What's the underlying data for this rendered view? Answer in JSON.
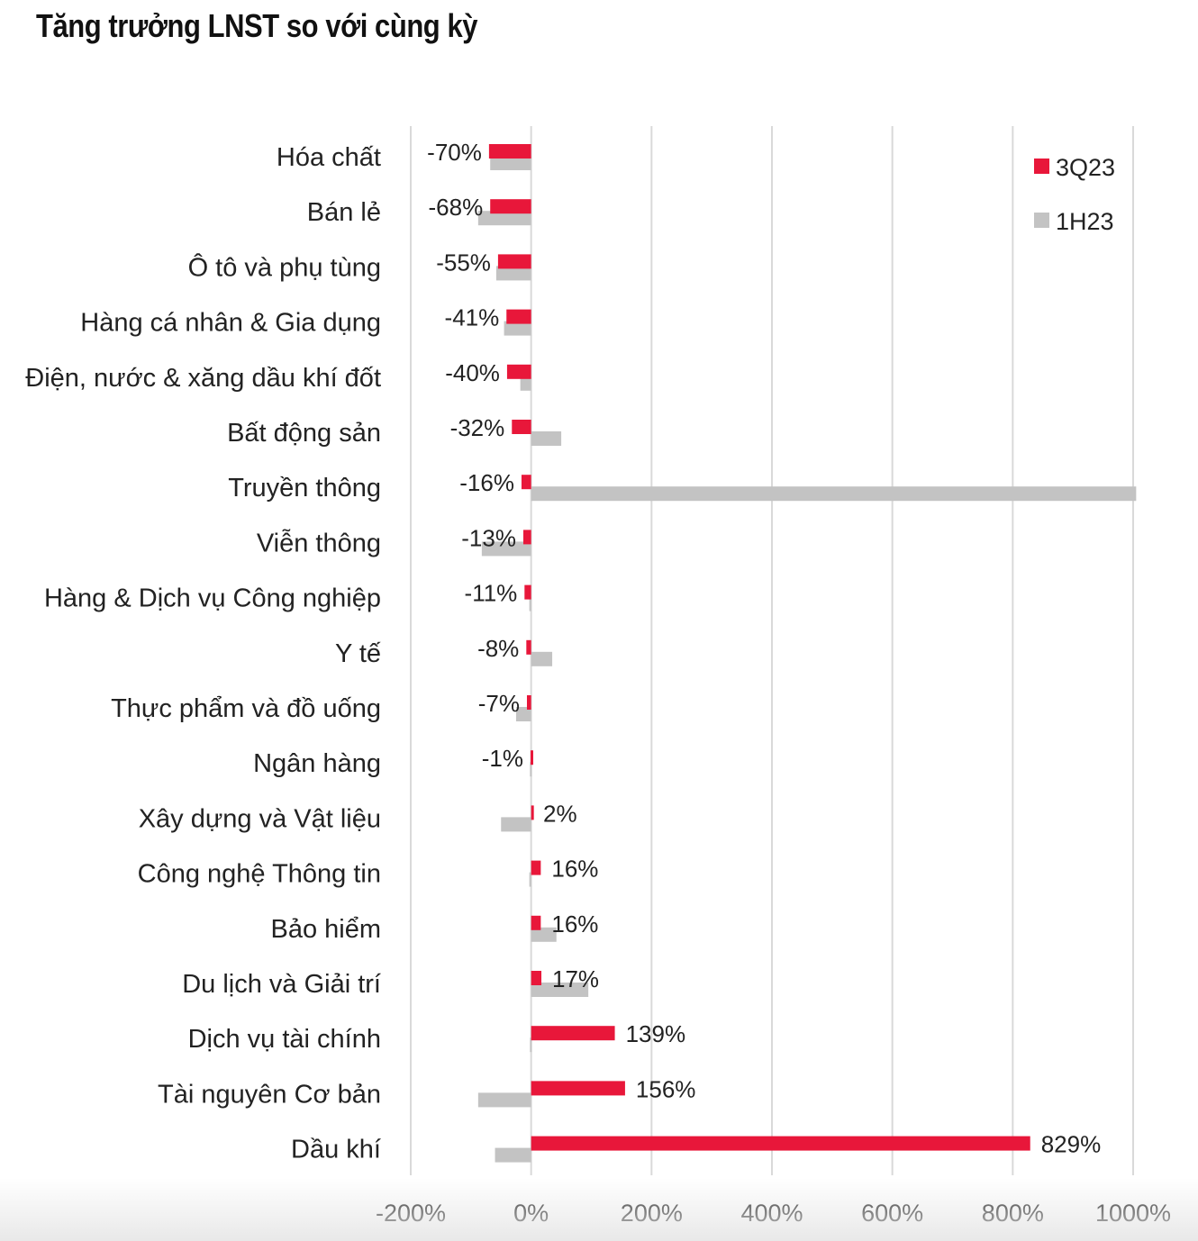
{
  "title": "Tăng trưởng LNST so với cùng kỳ",
  "colors": {
    "series_3q23": "#e8173a",
    "series_1h23": "#c3c3c3",
    "grid": "#d9d9d9"
  },
  "chart_data": {
    "type": "bar",
    "orientation": "horizontal",
    "title": "Tăng trưởng LNST so với cùng kỳ",
    "xlabel": "",
    "ylabel": "",
    "xlim": [
      -200,
      1000
    ],
    "x_ticks": [
      -200,
      0,
      200,
      400,
      600,
      800,
      1000
    ],
    "x_tick_labels": [
      "-200%",
      "0%",
      "200%",
      "400%",
      "600%",
      "800%",
      "1000%"
    ],
    "grid": true,
    "legend_position": "top-right",
    "categories": [
      "Hóa chất",
      "Bán lẻ",
      "Ô tô và phụ tùng",
      "Hàng cá nhân & Gia dụng",
      "Điện, nước & xăng dầu khí đốt",
      "Bất động sản",
      "Truyền thông",
      "Viễn thông",
      "Hàng & Dịch vụ Công nghiệp",
      "Y tế",
      "Thực phẩm và đồ uống",
      "Ngân hàng",
      "Xây dựng và Vật liệu",
      "Công nghệ Thông tin",
      "Bảo hiểm",
      "Du lịch và Giải trí",
      "Dịch vụ tài chính",
      "Tài nguyên Cơ bản",
      "Dầu khí"
    ],
    "series": [
      {
        "name": "3Q23",
        "color": "#e8173a",
        "values": [
          -70,
          -68,
          -55,
          -41,
          -40,
          -32,
          -16,
          -13,
          -11,
          -8,
          -7,
          -1,
          2,
          16,
          16,
          17,
          139,
          156,
          829
        ],
        "labels": [
          "-70%",
          "-68%",
          "-55%",
          "-41%",
          "-40%",
          "-32%",
          "-16%",
          "-13%",
          "-11%",
          "-8%",
          "-7%",
          "-1%",
          "2%",
          "16%",
          "16%",
          "17%",
          "139%",
          "156%",
          "829%"
        ]
      },
      {
        "name": "1H23",
        "color": "#c3c3c3",
        "values": [
          -68,
          -88,
          -58,
          -45,
          -18,
          50,
          1005,
          -82,
          -3,
          35,
          -25,
          -2,
          -50,
          -3,
          42,
          95,
          -2,
          -88,
          -60
        ]
      }
    ]
  }
}
